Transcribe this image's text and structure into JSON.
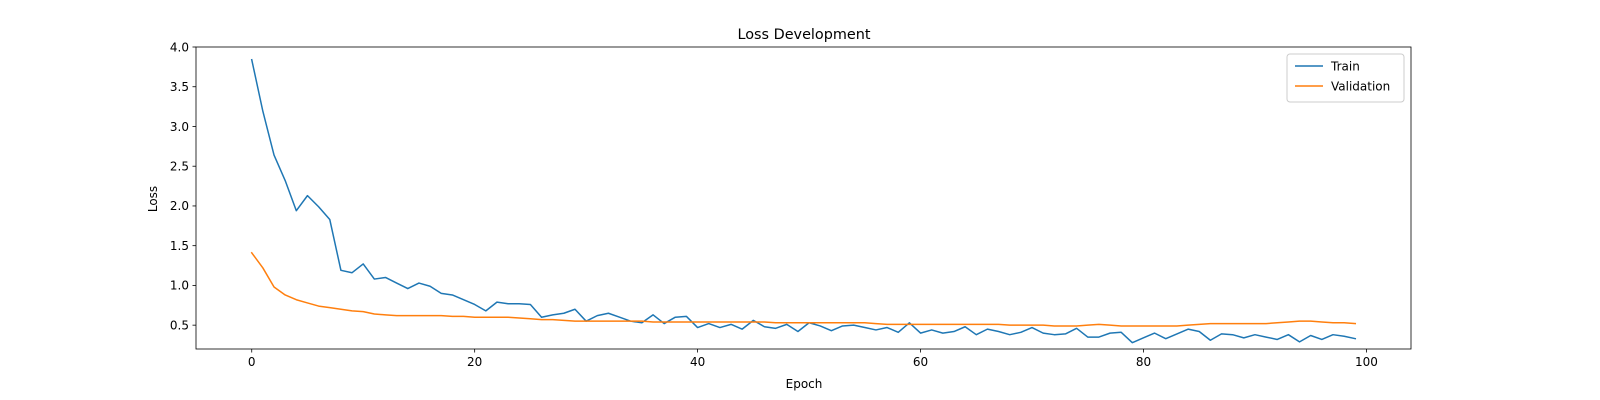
{
  "chart_data": {
    "type": "line",
    "title": "Loss Development",
    "xlabel": "Epoch",
    "ylabel": "Loss",
    "xlim": [
      -5,
      104
    ],
    "ylim": [
      0.2,
      4.0
    ],
    "xticks": [
      0,
      20,
      40,
      60,
      80,
      100
    ],
    "yticks": [
      0.5,
      1.0,
      1.5,
      2.0,
      2.5,
      3.0,
      3.5,
      4.0
    ],
    "xtick_labels": [
      "0",
      "20",
      "40",
      "60",
      "80",
      "100"
    ],
    "ytick_labels": [
      "0.5",
      "1.0",
      "1.5",
      "2.0",
      "2.5",
      "3.0",
      "3.5",
      "4.0"
    ],
    "grid": false,
    "legend_position": "top-right",
    "series": [
      {
        "name": "Train",
        "color": "#1f77b4",
        "values": [
          3.84,
          3.19,
          2.64,
          2.32,
          1.94,
          2.13,
          1.99,
          1.83,
          1.19,
          1.16,
          1.27,
          1.08,
          1.1,
          1.03,
          0.96,
          1.03,
          0.99,
          0.9,
          0.88,
          0.82,
          0.76,
          0.68,
          0.79,
          0.77,
          0.77,
          0.76,
          0.6,
          0.63,
          0.65,
          0.7,
          0.55,
          0.62,
          0.65,
          0.6,
          0.55,
          0.53,
          0.63,
          0.52,
          0.6,
          0.61,
          0.47,
          0.52,
          0.47,
          0.51,
          0.45,
          0.56,
          0.48,
          0.46,
          0.51,
          0.42,
          0.53,
          0.49,
          0.43,
          0.49,
          0.5,
          0.47,
          0.44,
          0.47,
          0.41,
          0.53,
          0.4,
          0.44,
          0.4,
          0.42,
          0.48,
          0.38,
          0.45,
          0.42,
          0.38,
          0.41,
          0.47,
          0.4,
          0.38,
          0.39,
          0.46,
          0.35,
          0.35,
          0.4,
          0.41,
          0.28,
          0.34,
          0.4,
          0.33,
          0.39,
          0.45,
          0.42,
          0.31,
          0.39,
          0.38,
          0.34,
          0.38,
          0.35,
          0.32,
          0.38,
          0.29,
          0.37,
          0.32,
          0.38,
          0.36,
          0.33
        ]
      },
      {
        "name": "Validation",
        "color": "#ff7f0e",
        "values": [
          1.41,
          1.22,
          0.98,
          0.88,
          0.82,
          0.78,
          0.74,
          0.72,
          0.7,
          0.68,
          0.67,
          0.64,
          0.63,
          0.62,
          0.62,
          0.62,
          0.62,
          0.62,
          0.61,
          0.61,
          0.6,
          0.6,
          0.6,
          0.6,
          0.59,
          0.58,
          0.57,
          0.57,
          0.56,
          0.55,
          0.55,
          0.55,
          0.55,
          0.55,
          0.55,
          0.55,
          0.54,
          0.54,
          0.54,
          0.54,
          0.54,
          0.54,
          0.54,
          0.54,
          0.54,
          0.54,
          0.54,
          0.53,
          0.53,
          0.53,
          0.53,
          0.53,
          0.53,
          0.53,
          0.53,
          0.53,
          0.52,
          0.51,
          0.51,
          0.51,
          0.51,
          0.51,
          0.51,
          0.51,
          0.51,
          0.51,
          0.51,
          0.51,
          0.5,
          0.5,
          0.5,
          0.5,
          0.49,
          0.49,
          0.49,
          0.5,
          0.51,
          0.5,
          0.49,
          0.49,
          0.49,
          0.49,
          0.49,
          0.49,
          0.5,
          0.51,
          0.52,
          0.52,
          0.52,
          0.52,
          0.52,
          0.52,
          0.53,
          0.54,
          0.55,
          0.55,
          0.54,
          0.53,
          0.53,
          0.52
        ]
      }
    ]
  }
}
